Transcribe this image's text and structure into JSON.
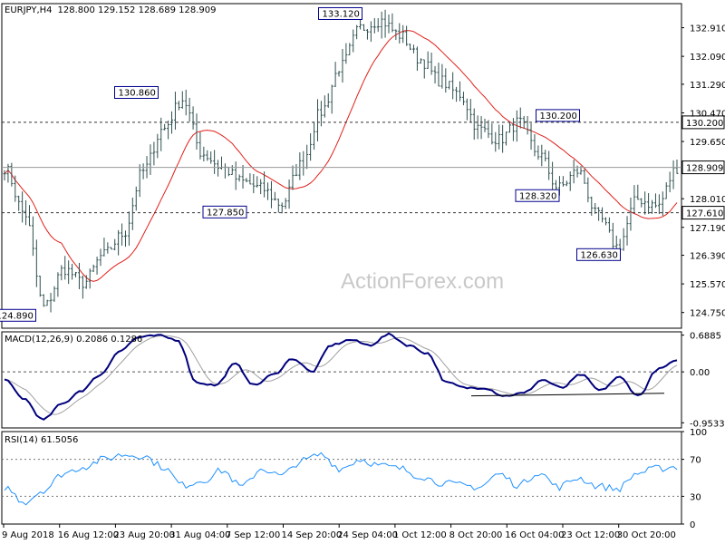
{
  "header": {
    "symbol": "EURJPY,H4",
    "ohlc": "128.800 129.152 128.689 128.909"
  },
  "watermark": "ActionForex.com",
  "colors": {
    "candle": "#2f4f4f",
    "ma": "#e0201a",
    "macd_line": "#00007d",
    "macd_signal": "#a0a0a0",
    "rsi": "#1e90ff",
    "trendline": "#000000",
    "grid": "#555555"
  },
  "chart_data": [
    {
      "type": "candlestick",
      "panel": "price",
      "ylim": [
        124.3,
        133.6
      ],
      "y_ticks": [
        "132.910",
        "132.090",
        "131.290",
        "130.470",
        "129.650",
        "128.010",
        "127.190",
        "126.390",
        "125.570",
        "124.750"
      ],
      "y_tick_values": [
        132.91,
        132.09,
        131.29,
        130.47,
        129.65,
        128.01,
        127.19,
        126.39,
        125.57,
        124.75
      ],
      "x_labels": [
        "9 Aug 2018",
        "16 Aug 12:00",
        "23 Aug 20:00",
        "31 Aug 04:00",
        "7 Sep 12:00",
        "14 Sep 20:00",
        "24 Sep 04:00",
        "1 Oct 12:00",
        "8 Oct 20:00",
        "16 Oct 04:00",
        "23 Oct 12:00",
        "30 Oct 20:00"
      ],
      "close_anchors": [
        128.9,
        127.6,
        124.9,
        126.0,
        125.6,
        126.4,
        127.0,
        128.8,
        130.0,
        130.86,
        129.3,
        128.9,
        128.5,
        128.3,
        127.85,
        129.0,
        130.5,
        131.8,
        132.9,
        133.12,
        132.7,
        132.0,
        131.4,
        131.0,
        130.0,
        129.7,
        130.2,
        129.3,
        128.32,
        128.8,
        127.5,
        126.63,
        128.0,
        127.8,
        128.9
      ],
      "horizontal_levels": [
        {
          "value": 130.2,
          "label": "130.200"
        },
        {
          "value": 127.61,
          "label": "127.610"
        }
      ],
      "current_price": {
        "value": 128.909,
        "label": "128.909"
      },
      "annotations": [
        {
          "label": "124.890",
          "value": 124.89,
          "x_frac": 0.05
        },
        {
          "label": "130.860",
          "value": 130.86,
          "x_frac": 0.23
        },
        {
          "label": "127.850",
          "value": 127.85,
          "x_frac": 0.36
        },
        {
          "label": "133.120",
          "value": 133.12,
          "x_frac": 0.53
        },
        {
          "label": "130.200",
          "value": 130.2,
          "x_frac": 0.85
        },
        {
          "label": "128.320",
          "value": 128.32,
          "x_frac": 0.82
        },
        {
          "label": "126.630",
          "value": 126.63,
          "x_frac": 0.91
        }
      ]
    },
    {
      "type": "line",
      "panel": "macd",
      "title": "MACD(12,26,9) 0.2086 0.1286",
      "ylim": [
        -1.05,
        0.75
      ],
      "y_ticks": [
        "0.6885",
        "0.00",
        "-0.9533"
      ],
      "y_tick_values": [
        0.6885,
        0.0,
        -0.9533
      ],
      "macd_anchors": [
        -0.15,
        -0.5,
        -0.9,
        -0.6,
        -0.35,
        -0.05,
        0.4,
        0.65,
        0.68,
        0.6,
        -0.2,
        -0.25,
        0.15,
        -0.25,
        -0.05,
        0.25,
        0.0,
        0.5,
        0.6,
        0.5,
        0.7,
        0.5,
        0.35,
        -0.2,
        -0.3,
        -0.3,
        -0.45,
        -0.4,
        -0.15,
        -0.3,
        -0.05,
        -0.35,
        -0.1,
        -0.45,
        0.05,
        0.2
      ],
      "trendline": [
        -0.45,
        -0.4
      ]
    },
    {
      "type": "line",
      "panel": "rsi",
      "title": "RSI(14) 61.5056",
      "ylim": [
        0,
        100
      ],
      "y_ticks": [
        "100",
        "70",
        "30",
        "0"
      ],
      "y_tick_values": [
        100,
        70,
        30,
        0
      ],
      "levels": [
        70,
        30
      ],
      "rsi_anchors": [
        40,
        24,
        37,
        55,
        62,
        70,
        75,
        74,
        62,
        42,
        47,
        58,
        40,
        60,
        52,
        68,
        75,
        60,
        70,
        63,
        60,
        52,
        45,
        42,
        40,
        54,
        42,
        56,
        40,
        50,
        41,
        38,
        55,
        60,
        62
      ]
    }
  ]
}
